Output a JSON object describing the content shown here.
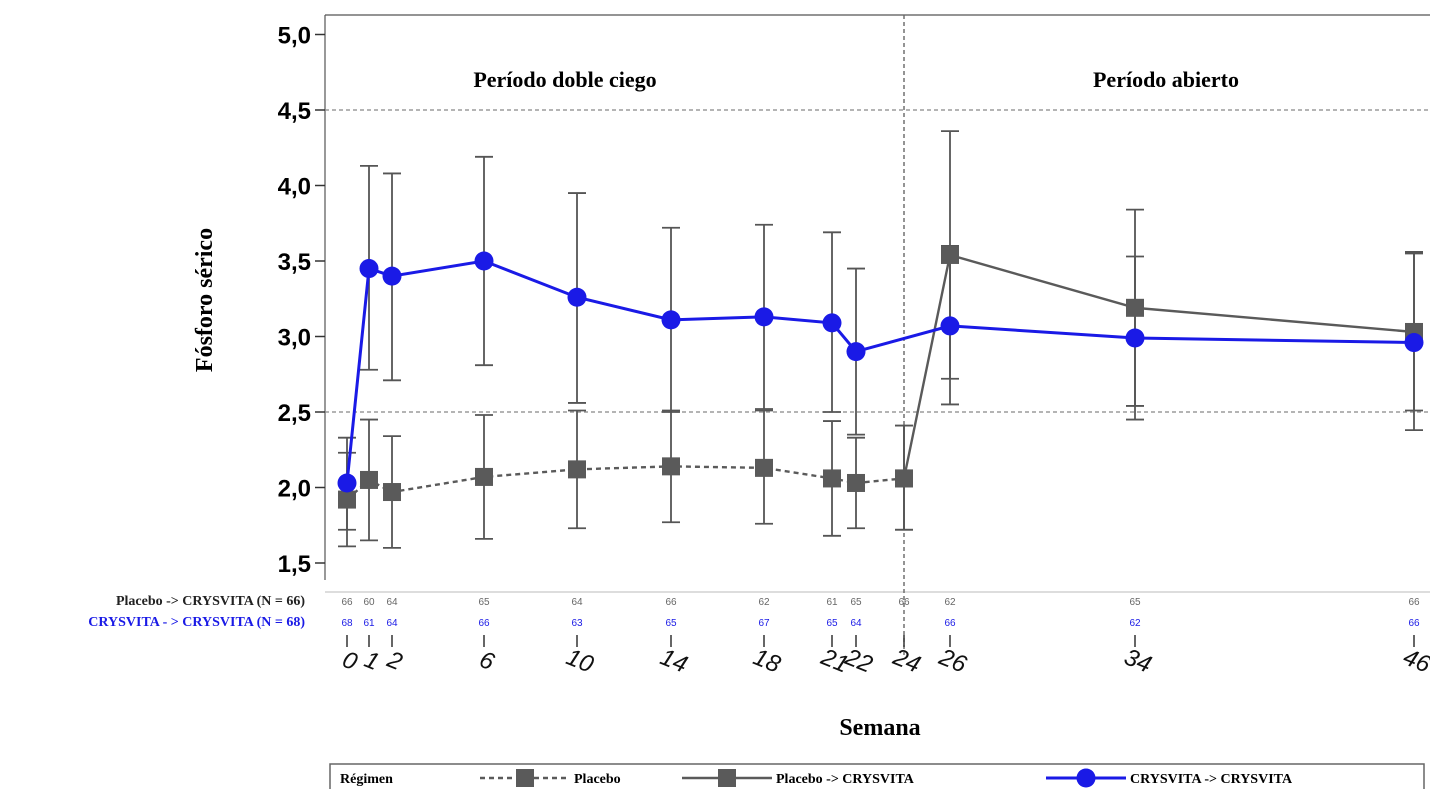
{
  "chart_data": {
    "type": "line",
    "title": "",
    "xlabel": "Semana",
    "ylabel": "Fósforo sérico",
    "ylim": [
      1.5,
      5.0
    ],
    "yticks": [
      "5,0",
      "4,5",
      "4,0",
      "3,5",
      "3,0",
      "2,5",
      "2,0",
      "1,5"
    ],
    "ytick_values": [
      5.0,
      4.5,
      4.0,
      3.5,
      3.0,
      2.5,
      2.0,
      1.5
    ],
    "x_ticks": [
      "0",
      "1",
      "2",
      "6",
      "10",
      "14",
      "18",
      "21",
      "22",
      "24",
      "26",
      "34",
      "46"
    ],
    "x_tick_values": [
      0,
      1,
      2,
      6,
      10,
      14,
      18,
      21,
      22,
      24,
      26,
      34,
      46
    ],
    "period_labels": [
      "Período doble ciego",
      "Período abierto"
    ],
    "period_divider_x": 24,
    "series": [
      {
        "name": "Placebo",
        "color": "#5a5a5a",
        "marker": "square",
        "line": "dashed",
        "points": [
          {
            "x": 0,
            "y": 1.92,
            "lo": 1.72,
            "hi": 2.23
          },
          {
            "x": 1,
            "y": 2.05,
            "lo": 1.65,
            "hi": 2.45
          },
          {
            "x": 2,
            "y": 1.97,
            "lo": 1.6,
            "hi": 2.34
          },
          {
            "x": 6,
            "y": 2.07,
            "lo": 1.66,
            "hi": 2.48
          },
          {
            "x": 10,
            "y": 2.12,
            "lo": 1.73,
            "hi": 2.51
          },
          {
            "x": 14,
            "y": 2.14,
            "lo": 1.77,
            "hi": 2.51
          },
          {
            "x": 18,
            "y": 2.13,
            "lo": 1.76,
            "hi": 2.51
          },
          {
            "x": 21,
            "y": 2.06,
            "lo": 1.68,
            "hi": 2.44
          },
          {
            "x": 22,
            "y": 2.03,
            "lo": 1.73,
            "hi": 2.33
          },
          {
            "x": 24,
            "y": 2.06,
            "lo": 1.72,
            "hi": 2.41
          }
        ]
      },
      {
        "name": "Placebo -> CRYSVITA",
        "color": "#5a5a5a",
        "marker": "square",
        "line": "solid",
        "points": [
          {
            "x": 24,
            "y": 2.06,
            "lo": 1.72,
            "hi": 2.41
          },
          {
            "x": 26,
            "y": 3.54,
            "lo": 2.72,
            "hi": 4.36
          },
          {
            "x": 34,
            "y": 3.19,
            "lo": 2.54,
            "hi": 3.84
          },
          {
            "x": 46,
            "y": 3.03,
            "lo": 2.51,
            "hi": 3.55
          }
        ]
      },
      {
        "name": "CRYSVITA -> CRYSVITA",
        "color": "#1a1ae6",
        "marker": "circle",
        "line": "solid",
        "points": [
          {
            "x": 0,
            "y": 2.03,
            "lo": 1.61,
            "hi": 2.33
          },
          {
            "x": 1,
            "y": 3.45,
            "lo": 2.78,
            "hi": 4.13
          },
          {
            "x": 2,
            "y": 3.4,
            "lo": 2.71,
            "hi": 4.08
          },
          {
            "x": 6,
            "y": 3.5,
            "lo": 2.81,
            "hi": 4.19
          },
          {
            "x": 10,
            "y": 3.26,
            "lo": 2.56,
            "hi": 3.95
          },
          {
            "x": 14,
            "y": 3.11,
            "lo": 2.5,
            "hi": 3.72
          },
          {
            "x": 18,
            "y": 3.13,
            "lo": 2.52,
            "hi": 3.74
          },
          {
            "x": 21,
            "y": 3.09,
            "lo": 2.5,
            "hi": 3.69
          },
          {
            "x": 22,
            "y": 2.9,
            "lo": 2.35,
            "hi": 3.45
          },
          {
            "x": 26,
            "y": 3.07,
            "lo": 2.55,
            "hi": 3.6
          },
          {
            "x": 34,
            "y": 2.99,
            "lo": 2.45,
            "hi": 3.53
          },
          {
            "x": 46,
            "y": 2.96,
            "lo": 2.38,
            "hi": 3.56
          }
        ]
      }
    ],
    "n_at_risk": [
      {
        "label": "Placebo -> CRYSVITA (N = 66)",
        "color": "#222222",
        "counts": [
          {
            "x": 0,
            "n": "66"
          },
          {
            "x": 1,
            "n": "60"
          },
          {
            "x": 2,
            "n": "64"
          },
          {
            "x": 6,
            "n": "65"
          },
          {
            "x": 10,
            "n": "64"
          },
          {
            "x": 14,
            "n": "66"
          },
          {
            "x": 18,
            "n": "62"
          },
          {
            "x": 21,
            "n": "61"
          },
          {
            "x": 22,
            "n": "65"
          },
          {
            "x": 24,
            "n": "66"
          },
          {
            "x": 26,
            "n": "62"
          },
          {
            "x": 34,
            "n": "65"
          },
          {
            "x": 46,
            "n": "66"
          }
        ]
      },
      {
        "label": "CRYSVITA - > CRYSVITA (N = 68)",
        "color": "#1a1ae6",
        "counts": [
          {
            "x": 0,
            "n": "68"
          },
          {
            "x": 1,
            "n": "61"
          },
          {
            "x": 2,
            "n": "64"
          },
          {
            "x": 6,
            "n": "66"
          },
          {
            "x": 10,
            "n": "63"
          },
          {
            "x": 14,
            "n": "65"
          },
          {
            "x": 18,
            "n": "67"
          },
          {
            "x": 21,
            "n": "65"
          },
          {
            "x": 22,
            "n": "64"
          },
          {
            "x": 26,
            "n": "66"
          },
          {
            "x": 34,
            "n": "62"
          },
          {
            "x": 46,
            "n": "66"
          }
        ]
      }
    ],
    "legend": {
      "title": "Régimen",
      "placement": "bottom",
      "entries": [
        "Placebo",
        "Placebo -> CRYSVITA",
        "CRYSVITA -> CRYSVITA"
      ]
    },
    "grid": "horizontal dashed at 2.5 and 4.5"
  }
}
